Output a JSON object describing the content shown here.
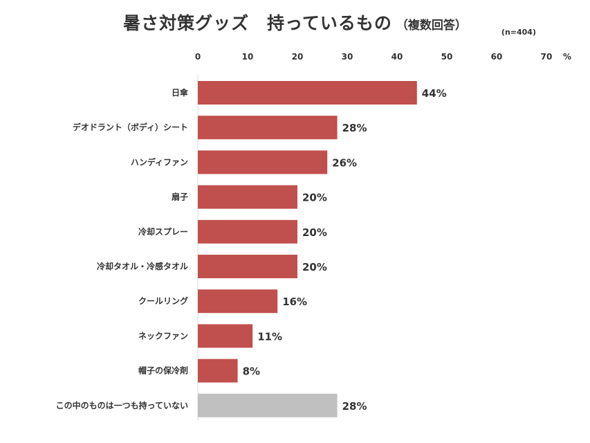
{
  "chart_title": {
    "main": "暑さ対策グッズ　持っているもの",
    "sub": "（複数回答）",
    "sample_size": "(n=404)"
  },
  "chart_data": {
    "type": "bar",
    "orientation": "horizontal",
    "title": "暑さ対策グッズ　持っているもの（複数回答）",
    "xlim": [
      0,
      70
    ],
    "ticks": [
      "0",
      "10",
      "20",
      "30",
      "40",
      "50",
      "60",
      "70"
    ],
    "unit": "%",
    "grid": false,
    "categories": [
      "日傘",
      "デオドラント（ボディ）シート",
      "ハンディファン",
      "扇子",
      "冷却スプレー",
      "冷却タオル・冷感タオル",
      "クールリング",
      "ネックファン",
      "帽子の保冷剤",
      "この中のものは一つも持っていない"
    ],
    "values": [
      44,
      28,
      26,
      20,
      20,
      20,
      16,
      11,
      8,
      28
    ],
    "value_labels": [
      "44%",
      "28%",
      "26%",
      "20%",
      "20%",
      "20%",
      "16%",
      "11%",
      "8%",
      "28%"
    ],
    "colors": {
      "bar": "#c0504d",
      "bar_none": "#c0c0c0",
      "axis": "#d9d9d9"
    }
  }
}
